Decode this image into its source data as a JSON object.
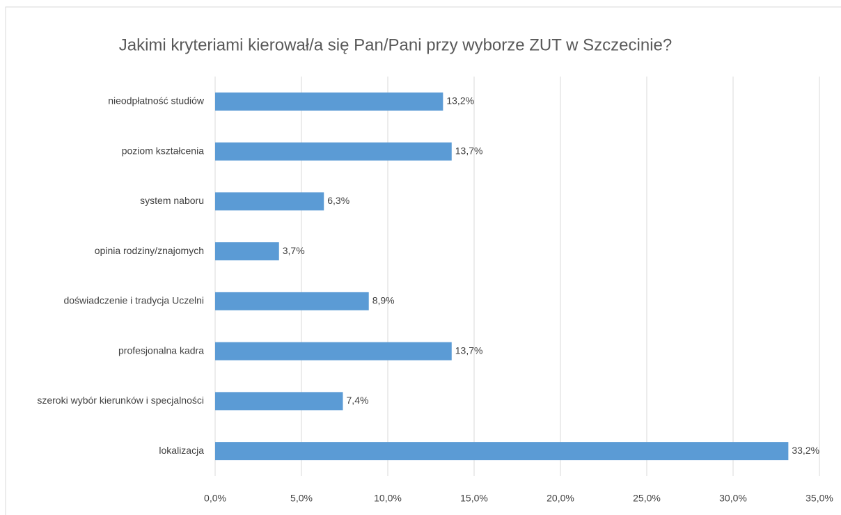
{
  "chart_data": {
    "type": "bar",
    "orientation": "horizontal",
    "title": "Jakimi kryteriami kierował/a się Pan/Pani przy wyborze ZUT w Szczecinie?",
    "categories": [
      "nieodpłatność studiów",
      "poziom kształcenia",
      "system naboru",
      "opinia rodziny/znajomych",
      "doświadczenie i tradycja Uczelni",
      "profesjonalna kadra",
      "szeroki wybór kierunków i specjalności",
      "lokalizacja"
    ],
    "values": [
      13.2,
      13.7,
      6.3,
      3.7,
      8.9,
      13.7,
      7.4,
      33.2
    ],
    "value_labels": [
      "13,2%",
      "13,7%",
      "6,3%",
      "3,7%",
      "8,9%",
      "13,7%",
      "7,4%",
      "33,2%"
    ],
    "color": "#5b9bd5",
    "xlim": [
      0,
      35
    ],
    "xticks": [
      {
        "value": 0,
        "label": "0,0%"
      },
      {
        "value": 5,
        "label": "5,0%"
      },
      {
        "value": 10,
        "label": "10,0%"
      },
      {
        "value": 15,
        "label": "15,0%"
      },
      {
        "value": 20,
        "label": "20,0%"
      },
      {
        "value": 25,
        "label": "25,0%"
      },
      {
        "value": 30,
        "label": "30,0%"
      },
      {
        "value": 35,
        "label": "35,0%"
      }
    ],
    "grid": true
  }
}
